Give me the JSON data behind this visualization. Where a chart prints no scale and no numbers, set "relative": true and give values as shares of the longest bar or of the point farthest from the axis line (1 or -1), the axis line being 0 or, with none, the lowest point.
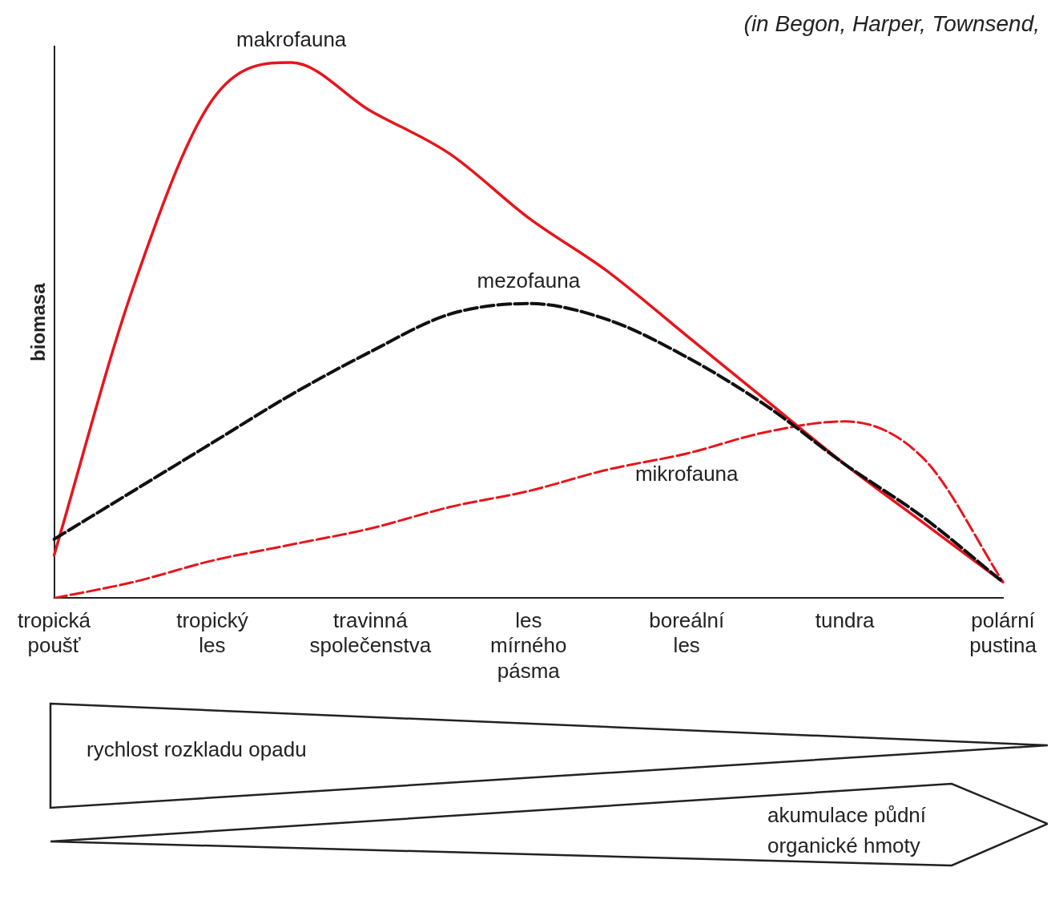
{
  "chart_data": {
    "type": "line",
    "relative": true,
    "ylabel": "biomasa",
    "categories": [
      "tropická poušť",
      null,
      "tropický les",
      null,
      "travinná společenstva",
      null,
      "les mírného pásma",
      null,
      "boreální les",
      null,
      "tundra",
      null,
      "polární pustina"
    ],
    "series": [
      {
        "name": "makrofauna",
        "color": "#e8141c",
        "line_style": "solid",
        "values": [
          0.08,
          0.58,
          0.93,
          1,
          0.91,
          0.83,
          0.71,
          0.61,
          0.49,
          0.37,
          0.25,
          0.14,
          0.03
        ]
      },
      {
        "name": "mezofauna",
        "color": "#111111",
        "line_style": "dashed",
        "values": [
          0.11,
          0.2,
          0.29,
          0.38,
          0.46,
          0.53,
          0.55,
          0.52,
          0.45,
          0.36,
          0.25,
          0.15,
          0.03
        ]
      },
      {
        "name": "mikrofauna",
        "color": "#e8141c",
        "line_style": "dashed",
        "values": [
          0,
          0.03,
          0.07,
          0.1,
          0.13,
          0.17,
          0.2,
          0.24,
          0.27,
          0.31,
          0.33,
          0.26,
          0.03
        ]
      }
    ],
    "legend": false,
    "grid": false,
    "annotations": [
      "(in Begon, Harper, Townsend,",
      "rychlost rozkladu opadu",
      "akumulace půdní organické hmoty"
    ]
  }
}
